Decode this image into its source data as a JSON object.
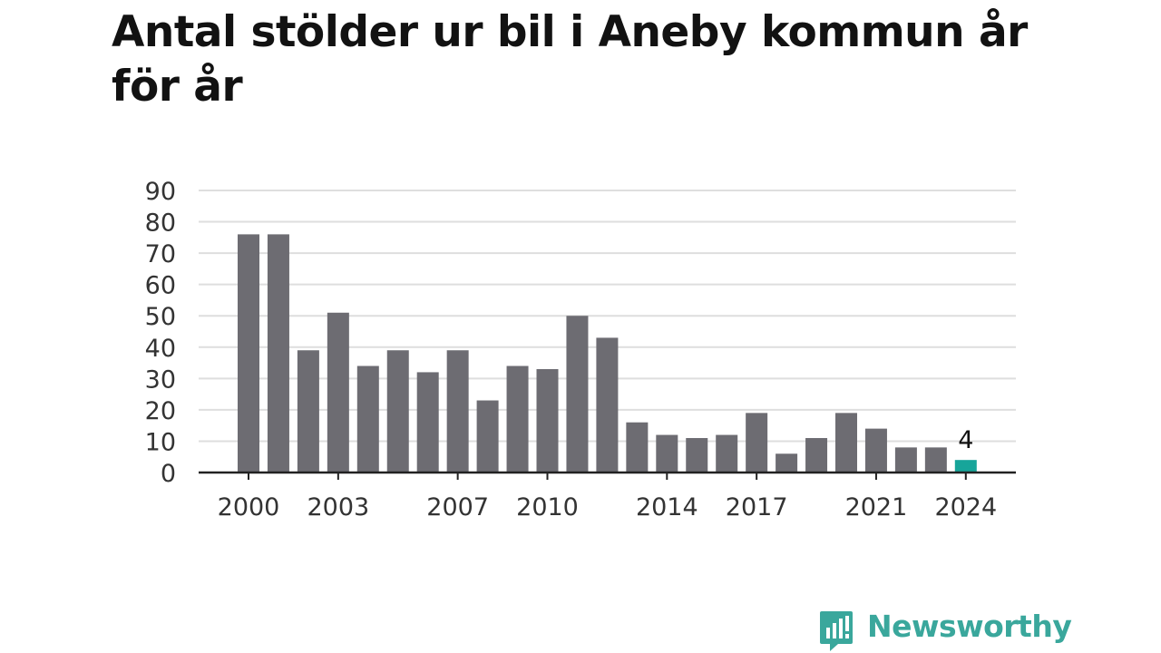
{
  "chart_data": {
    "type": "bar",
    "title": "Antal stölder ur bil i Aneby kommun år för år",
    "categories": [
      "2000",
      "2001",
      "2002",
      "2003",
      "2004",
      "2005",
      "2006",
      "2007",
      "2008",
      "2009",
      "2010",
      "2011",
      "2012",
      "2013",
      "2014",
      "2015",
      "2016",
      "2017",
      "2018",
      "2019",
      "2020",
      "2021",
      "2022",
      "2023",
      "2024"
    ],
    "values": [
      76,
      76,
      39,
      51,
      34,
      39,
      32,
      39,
      23,
      34,
      33,
      50,
      43,
      16,
      12,
      11,
      12,
      19,
      6,
      11,
      19,
      14,
      8,
      8,
      4
    ],
    "x_tick_labels": [
      "2000",
      "2003",
      "2007",
      "2010",
      "2014",
      "2017",
      "2021",
      "2024"
    ],
    "y_ticks": [
      0,
      10,
      20,
      30,
      40,
      50,
      60,
      70,
      80,
      90
    ],
    "ylim": [
      0,
      90
    ],
    "xlabel": "",
    "ylabel": "",
    "grid": true,
    "highlight": {
      "category": "2024",
      "value_label": "4"
    },
    "colors": {
      "bar": "#6d6c72",
      "highlight": "#17a59a",
      "grid": "#dedede",
      "axis": "#222222",
      "text": "#333333"
    }
  },
  "brand": {
    "name": "Newsworthy",
    "icon": "newsworthy-logo-icon",
    "color": "#3aa79c"
  }
}
